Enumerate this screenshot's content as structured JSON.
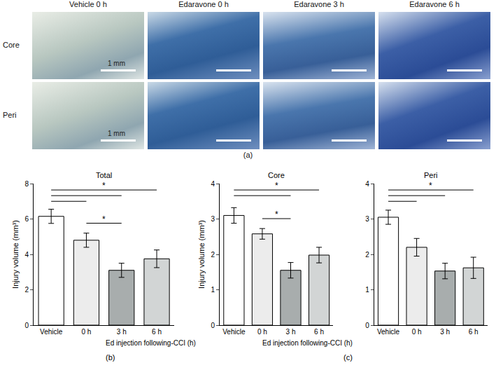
{
  "figure_a": {
    "label": "(a)",
    "columns": [
      "Vehicle 0 h",
      "Edaravone 0 h",
      "Edaravone 3 h",
      "Edaravone 6 h"
    ],
    "rows": [
      "Core",
      "Peri"
    ],
    "scale_bar_label": "1 mm"
  },
  "chart_data": [
    {
      "type": "bar",
      "panel": "(b)",
      "title": "Total",
      "categories": [
        "Vehicle",
        "0 h",
        "3 h",
        "6 h"
      ],
      "values": [
        6.15,
        4.8,
        3.1,
        3.75
      ],
      "errors": [
        0.4,
        0.4,
        0.4,
        0.5
      ],
      "colors": [
        "#ffffff",
        "#ececec",
        "#a8adad",
        "#d2d5d5"
      ],
      "ylim": [
        0,
        8
      ],
      "yticks": [
        0,
        2,
        4,
        6,
        8
      ],
      "y_label": "Injury volume (mm³)",
      "x_label": "Ed injection following-CCI (h)",
      "significance": [
        {
          "from": "Vehicle",
          "to": "6 h",
          "label": "*"
        },
        {
          "from": "Vehicle",
          "to": "3 h"
        },
        {
          "from": "Vehicle",
          "to": "0 h"
        },
        {
          "from": "0 h",
          "to": "3 h",
          "label": "*"
        }
      ]
    },
    {
      "type": "bar",
      "panel": "(c)",
      "title": "Core",
      "categories": [
        "Vehicle",
        "0 h",
        "3 h",
        "6 h"
      ],
      "values": [
        3.1,
        2.58,
        1.55,
        1.98
      ],
      "errors": [
        0.22,
        0.15,
        0.22,
        0.22
      ],
      "colors": [
        "#ffffff",
        "#ececec",
        "#a8adad",
        "#d2d5d5"
      ],
      "ylim": [
        0,
        4
      ],
      "yticks": [
        0,
        1,
        2,
        3,
        4
      ],
      "y_label": "Injury volume (mm³)",
      "x_label": "Ed injection following-CCI (h)",
      "significance": [
        {
          "from": "Vehicle",
          "to": "6 h",
          "label": "*"
        },
        {
          "from": "Vehicle",
          "to": "3 h"
        },
        {
          "from": "0 h",
          "to": "3 h",
          "label": "*"
        }
      ]
    },
    {
      "type": "bar",
      "title": "Peri",
      "categories": [
        "Vehicle",
        "0 h",
        "3 h",
        "6 h"
      ],
      "values": [
        3.05,
        2.2,
        1.53,
        1.62
      ],
      "errors": [
        0.2,
        0.25,
        0.22,
        0.3
      ],
      "colors": [
        "#ffffff",
        "#ececec",
        "#a8adad",
        "#d2d5d5"
      ],
      "ylim": [
        0,
        4
      ],
      "yticks": [
        0,
        1,
        2,
        3,
        4
      ],
      "significance": [
        {
          "from": "Vehicle",
          "to": "6 h",
          "label": "*"
        },
        {
          "from": "Vehicle",
          "to": "3 h"
        },
        {
          "from": "Vehicle",
          "to": "0 h"
        }
      ]
    }
  ]
}
